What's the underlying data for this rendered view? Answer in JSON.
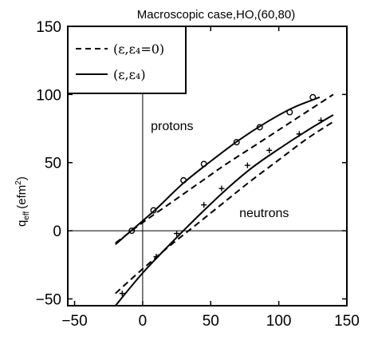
{
  "chart_data": {
    "type": "line",
    "title": "Macroscopic case,HO,(60,80)",
    "ylabel": "q",
    "ylabel_sub": "eff",
    "ylabel_unit": "(efm",
    "ylabel_unit_sup": "2",
    "ylabel_unit_end": ")",
    "xlabel": "",
    "xlim": [
      -55,
      150
    ],
    "ylim": [
      -55,
      150
    ],
    "x_ticks": [
      -50,
      0,
      50,
      100,
      150
    ],
    "y_ticks": [
      -50,
      0,
      50,
      100,
      150
    ],
    "x_tick_labels": [
      "−50",
      "0",
      "50",
      "100",
      "150"
    ],
    "y_tick_labels": [
      "−50",
      "0",
      "50",
      "100",
      "150"
    ],
    "grid": false,
    "reference_lines": {
      "x": 0,
      "y": 0
    },
    "legend": {
      "placement": "top-left",
      "entries": [
        {
          "label": "(ε,ε₄=0)",
          "style": "dashed"
        },
        {
          "label": "(ε,ε₄)",
          "style": "solid"
        }
      ]
    },
    "annotations": [
      {
        "text": "protons",
        "x": 6,
        "y": 74
      },
      {
        "text": "neutrons",
        "x": 71,
        "y": 10
      }
    ],
    "series": [
      {
        "group": "protons",
        "style": "solid",
        "x": [
          -20,
          -5,
          10,
          30,
          50,
          70,
          90,
          110,
          130
        ],
        "y": [
          -10,
          3,
          16,
          35,
          51,
          66,
          79,
          90,
          98
        ]
      },
      {
        "group": "protons",
        "style": "dashed",
        "x": [
          -20,
          0,
          20,
          40,
          60,
          80,
          100,
          120,
          140
        ],
        "y": [
          -9,
          6,
          20,
          34,
          48,
          61,
          74,
          87,
          100
        ]
      },
      {
        "group": "protons",
        "style": "markers-circle",
        "x": [
          -8,
          8,
          30,
          45,
          69,
          86,
          108,
          125
        ],
        "y": [
          0,
          15,
          37,
          49,
          65,
          76,
          87,
          98
        ]
      },
      {
        "group": "neutrons",
        "style": "solid",
        "x": [
          -20,
          0,
          20,
          40,
          60,
          80,
          100,
          120,
          140
        ],
        "y": [
          -55,
          -31,
          -10,
          10,
          29,
          46,
          60,
          73,
          85
        ]
      },
      {
        "group": "neutrons",
        "style": "dashed",
        "x": [
          -20,
          0,
          20,
          40,
          60,
          80,
          100,
          120,
          140
        ],
        "y": [
          -46,
          -28,
          -11,
          5,
          21,
          37,
          52,
          67,
          80
        ]
      },
      {
        "group": "neutrons",
        "style": "markers-plus",
        "x": [
          -15,
          10,
          25,
          45,
          58,
          77,
          93,
          115,
          131
        ],
        "y": [
          -46,
          -19,
          -2,
          19,
          31,
          48,
          59,
          71,
          81
        ]
      }
    ]
  }
}
